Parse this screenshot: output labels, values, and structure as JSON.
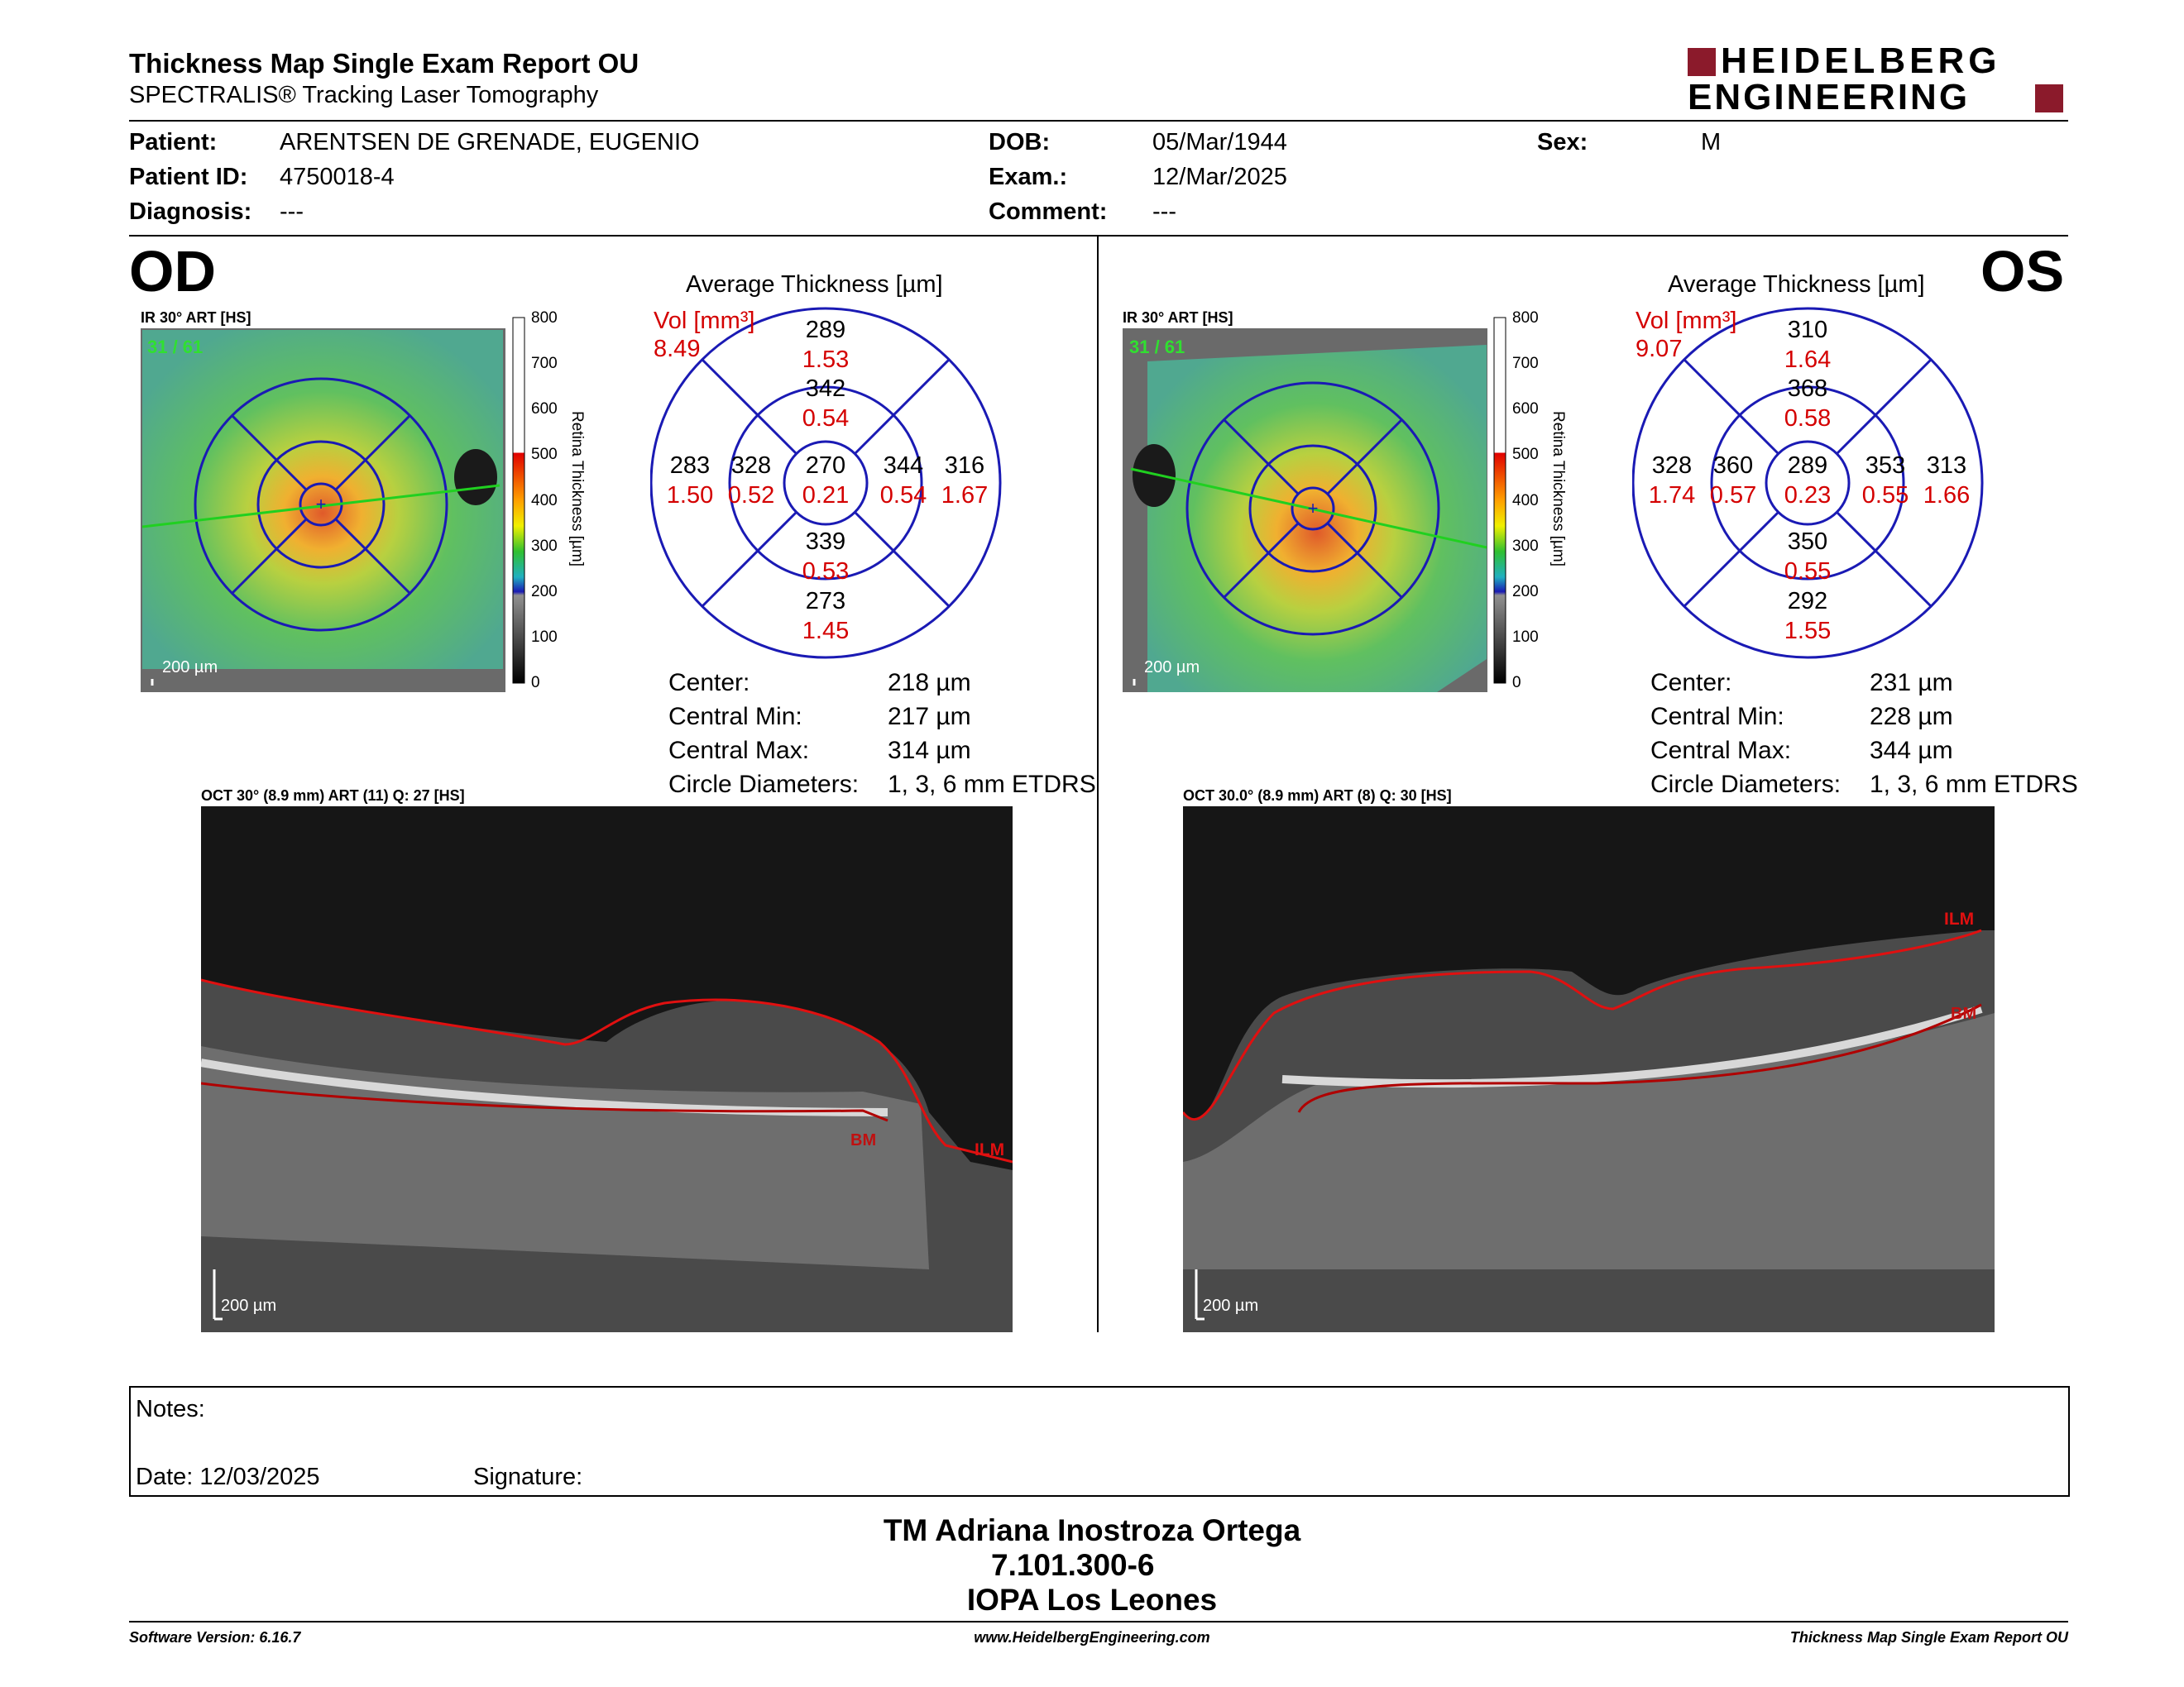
{
  "header": {
    "title": "Thickness Map Single Exam Report OU",
    "subtitle": "SPECTRALIS® Tracking Laser Tomography",
    "logo_line1": "HEIDELBERG",
    "logo_line2": "ENGINEERING"
  },
  "patient": {
    "patient_label": "Patient:",
    "patient_value": "ARENTSEN DE GRENADE, EUGENIO",
    "id_label": "Patient ID:",
    "id_value": "4750018-4",
    "diagnosis_label": "Diagnosis:",
    "diagnosis_value": "---",
    "dob_label": "DOB:",
    "dob_value": "05/Mar/1944",
    "exam_label": "Exam.:",
    "exam_value": "12/Mar/2025",
    "comment_label": "Comment:",
    "comment_value": "---",
    "sex_label": "Sex:",
    "sex_value": "M"
  },
  "scale": {
    "ticks": [
      "800",
      "700",
      "600",
      "500",
      "400",
      "300",
      "200",
      "100",
      "0"
    ],
    "label": "Retina Thickness [µm]"
  },
  "od": {
    "eye": "OD",
    "ir_label": "IR 30° ART [HS]",
    "ir_overlay": "31 / 61",
    "scalebar": "200 µm",
    "avg_title": "Average Thickness [µm]",
    "vol_label": "Vol [mm³]",
    "vol_value": "8.49",
    "sectors": {
      "outer_sup": {
        "t": "289",
        "v": "1.53"
      },
      "inner_sup": {
        "t": "342",
        "v": "0.54"
      },
      "outer_temp": {
        "t": "283",
        "v": "1.50"
      },
      "inner_temp": {
        "t": "328",
        "v": "0.52"
      },
      "center": {
        "t": "270",
        "v": "0.21"
      },
      "inner_nas": {
        "t": "344",
        "v": "0.54"
      },
      "outer_nas": {
        "t": "316",
        "v": "1.67"
      },
      "inner_inf": {
        "t": "339",
        "v": "0.53"
      },
      "outer_inf": {
        "t": "273",
        "v": "1.45"
      }
    },
    "stats": {
      "center_label": "Center:",
      "center_value": "218 µm",
      "min_label": "Central Min:",
      "min_value": "217 µm",
      "max_label": "Central Max:",
      "max_value": "314 µm",
      "diam_label": "Circle Diameters:",
      "diam_value": "1, 3, 6 mm ETDRS"
    },
    "oct_label": "OCT 30° (8.9 mm) ART (11) Q: 27 [HS]",
    "oct_scalebar": "200 µm",
    "layer_ilm": "ILM",
    "layer_bm": "BM"
  },
  "os": {
    "eye": "OS",
    "ir_label": "IR 30° ART [HS]",
    "ir_overlay": "31 / 61",
    "scalebar": "200 µm",
    "avg_title": "Average Thickness [µm]",
    "vol_label": "Vol [mm³]",
    "vol_value": "9.07",
    "sectors": {
      "outer_sup": {
        "t": "310",
        "v": "1.64"
      },
      "inner_sup": {
        "t": "368",
        "v": "0.58"
      },
      "outer_temp": {
        "t": "328",
        "v": "1.74"
      },
      "inner_temp": {
        "t": "360",
        "v": "0.57"
      },
      "center": {
        "t": "289",
        "v": "0.23"
      },
      "inner_nas": {
        "t": "353",
        "v": "0.55"
      },
      "outer_nas": {
        "t": "313",
        "v": "1.66"
      },
      "inner_inf": {
        "t": "350",
        "v": "0.55"
      },
      "outer_inf": {
        "t": "292",
        "v": "1.55"
      }
    },
    "stats": {
      "center_label": "Center:",
      "center_value": "231 µm",
      "min_label": "Central Min:",
      "min_value": "228 µm",
      "max_label": "Central Max:",
      "max_value": "344 µm",
      "diam_label": "Circle Diameters:",
      "diam_value": "1, 3, 6 mm ETDRS"
    },
    "oct_label": "OCT 30.0° (8.9 mm) ART (8) Q: 30 [HS]",
    "oct_scalebar": "200 µm",
    "layer_ilm": "ILM",
    "layer_bm": "BM"
  },
  "notes": {
    "notes_label": "Notes:",
    "date_label": "Date: 12/03/2025",
    "signature_label": "Signature:"
  },
  "signature_block": {
    "line1": "TM Adriana Inostroza Ortega",
    "line2": "7.101.300-6",
    "line3": "IOPA Los Leones"
  },
  "footer": {
    "left": "Software Version: 6.16.7",
    "center": "www.HeidelbergEngineering.com",
    "right": "Thickness Map Single Exam Report OU"
  },
  "colors": {
    "ring_blue": "#1a1ab4",
    "volume_red": "#d40000",
    "logo_red": "#8b1a2b",
    "segment_red": "#e01010"
  }
}
